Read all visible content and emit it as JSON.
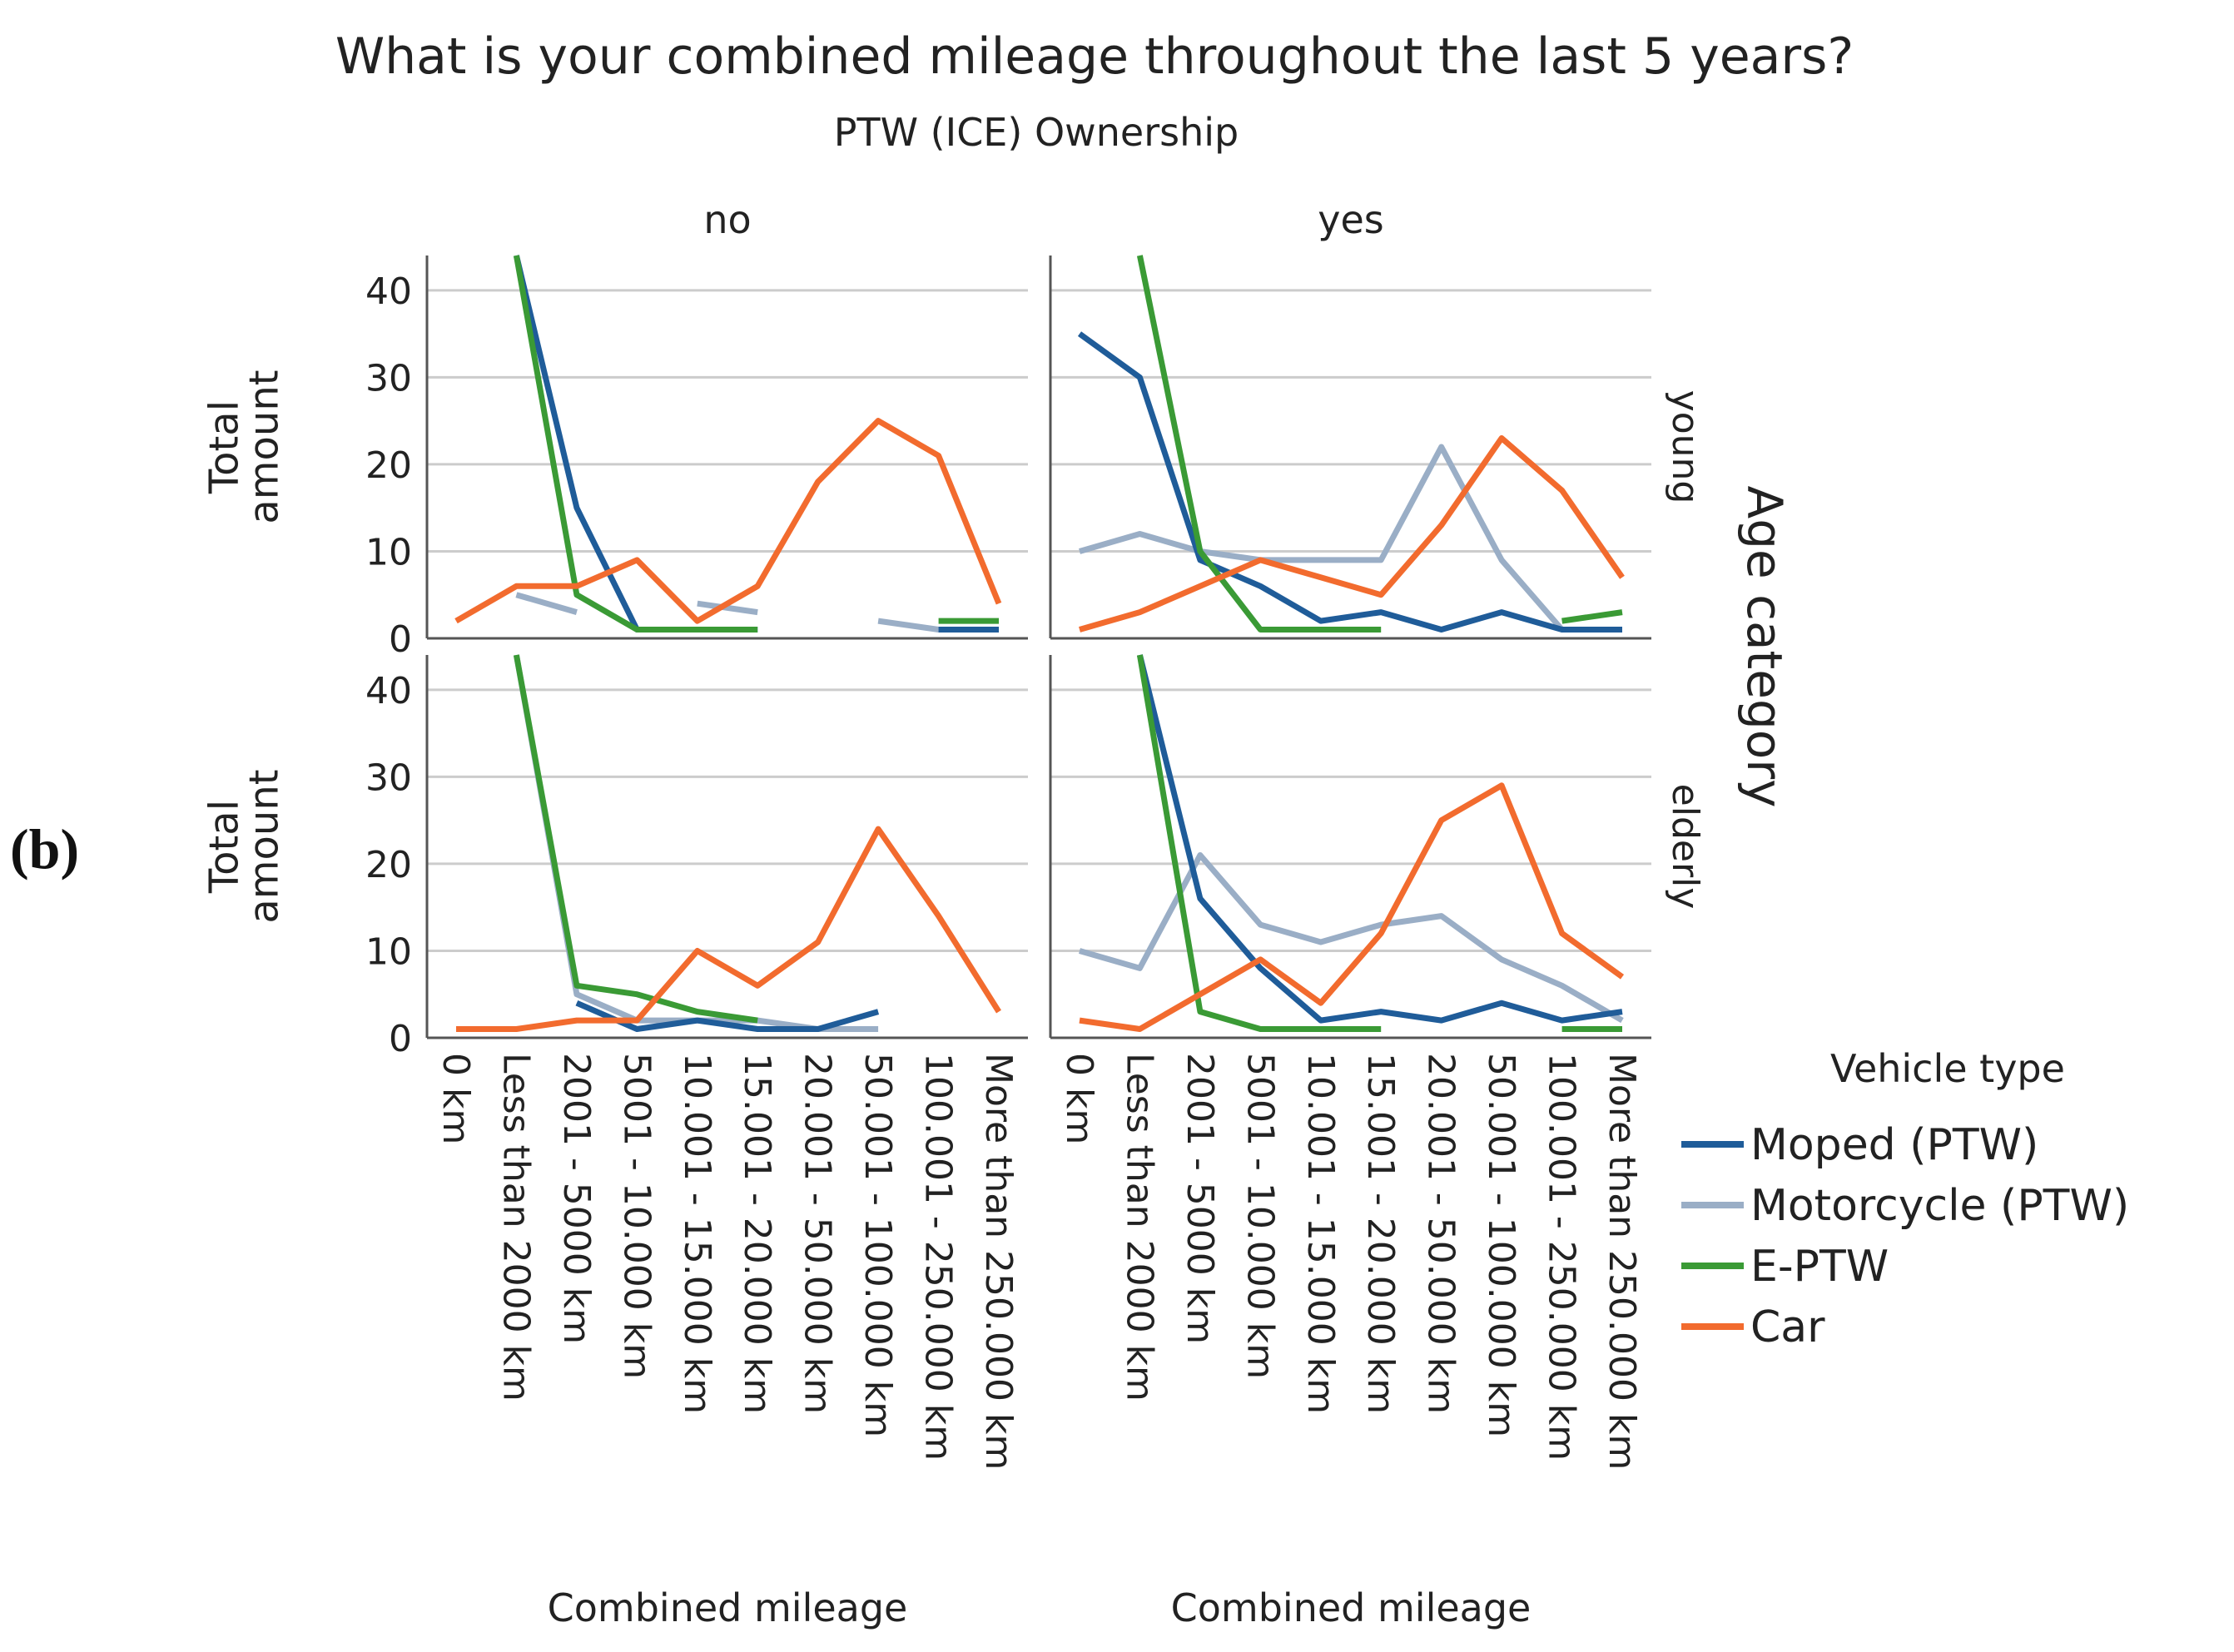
{
  "panel_label": "(b)",
  "chart_data": {
    "type": "line",
    "title": "What is your combined mileage throughout the last 5 years?",
    "column_facet_title": "PTW (ICE) Ownership",
    "column_facets": [
      "no",
      "yes"
    ],
    "row_facet_title": "Age category",
    "row_facets": [
      "young",
      "elderly"
    ],
    "xlabel": "Combined mileage",
    "ylabel": "Total amount",
    "ylim": [
      0,
      44
    ],
    "yticks": [
      0,
      10,
      20,
      30,
      40
    ],
    "grid": true,
    "legend_title": "Vehicle type",
    "legend_position": "right",
    "categories": [
      "0 km",
      "Less than 2000 km",
      "2001 - 5000 km",
      "5001 - 10.000 km",
      "10.001 - 15.000 km",
      "15.001 - 20.000 km",
      "20.001 - 50.000 km",
      "50.001 - 100.000 km",
      "100.001 - 250.000 km",
      "More than 250.000 km"
    ],
    "series_styles": [
      {
        "name": "Moped (PTW)",
        "color": "#1f5c99"
      },
      {
        "name": "Motorcycle (PTW)",
        "color": "#9aaec6"
      },
      {
        "name": "E-PTW",
        "color": "#3a9a35"
      },
      {
        "name": "Car",
        "color": "#f26b2e"
      }
    ],
    "panels": [
      {
        "row": "young",
        "col": "no",
        "series": [
          {
            "name": "Motorcycle (PTW)",
            "values": [
              null,
              5,
              3,
              null,
              4,
              3,
              null,
              2,
              1,
              1
            ]
          },
          {
            "name": "Moped (PTW)",
            "values": [
              null,
              44,
              15,
              1,
              1,
              1,
              null,
              null,
              1,
              1
            ]
          },
          {
            "name": "E-PTW",
            "values": [
              null,
              44,
              5,
              1,
              1,
              1,
              null,
              null,
              2,
              2
            ]
          },
          {
            "name": "Car",
            "values": [
              2,
              6,
              6,
              9,
              2,
              6,
              18,
              25,
              21,
              4
            ]
          }
        ]
      },
      {
        "row": "young",
        "col": "yes",
        "series": [
          {
            "name": "Motorcycle (PTW)",
            "values": [
              10,
              12,
              10,
              9,
              9,
              9,
              22,
              9,
              1,
              1
            ]
          },
          {
            "name": "Moped (PTW)",
            "values": [
              35,
              30,
              9,
              6,
              2,
              3,
              1,
              3,
              1,
              1
            ]
          },
          {
            "name": "E-PTW",
            "values": [
              null,
              44,
              10,
              1,
              1,
              1,
              null,
              null,
              2,
              3
            ]
          },
          {
            "name": "Car",
            "values": [
              1,
              3,
              6,
              9,
              7,
              5,
              13,
              23,
              17,
              7
            ]
          }
        ]
      },
      {
        "row": "elderly",
        "col": "no",
        "series": [
          {
            "name": "Motorcycle (PTW)",
            "values": [
              null,
              44,
              5,
              2,
              2,
              2,
              1,
              1,
              null,
              null
            ]
          },
          {
            "name": "Moped (PTW)",
            "values": [
              null,
              null,
              4,
              1,
              2,
              1,
              1,
              3,
              null,
              null
            ]
          },
          {
            "name": "E-PTW",
            "values": [
              null,
              44,
              6,
              5,
              3,
              2,
              null,
              null,
              null,
              null
            ]
          },
          {
            "name": "Car",
            "values": [
              1,
              1,
              2,
              2,
              10,
              6,
              11,
              24,
              14,
              3
            ]
          }
        ]
      },
      {
        "row": "elderly",
        "col": "yes",
        "series": [
          {
            "name": "Motorcycle (PTW)",
            "values": [
              10,
              8,
              21,
              13,
              11,
              13,
              14,
              9,
              6,
              2
            ]
          },
          {
            "name": "Moped (PTW)",
            "values": [
              null,
              44,
              16,
              8,
              2,
              3,
              2,
              4,
              2,
              3
            ]
          },
          {
            "name": "E-PTW",
            "values": [
              null,
              44,
              3,
              1,
              1,
              1,
              null,
              null,
              1,
              1
            ]
          },
          {
            "name": "Car",
            "values": [
              2,
              1,
              5,
              9,
              4,
              12,
              25,
              29,
              12,
              7
            ]
          }
        ]
      }
    ]
  }
}
